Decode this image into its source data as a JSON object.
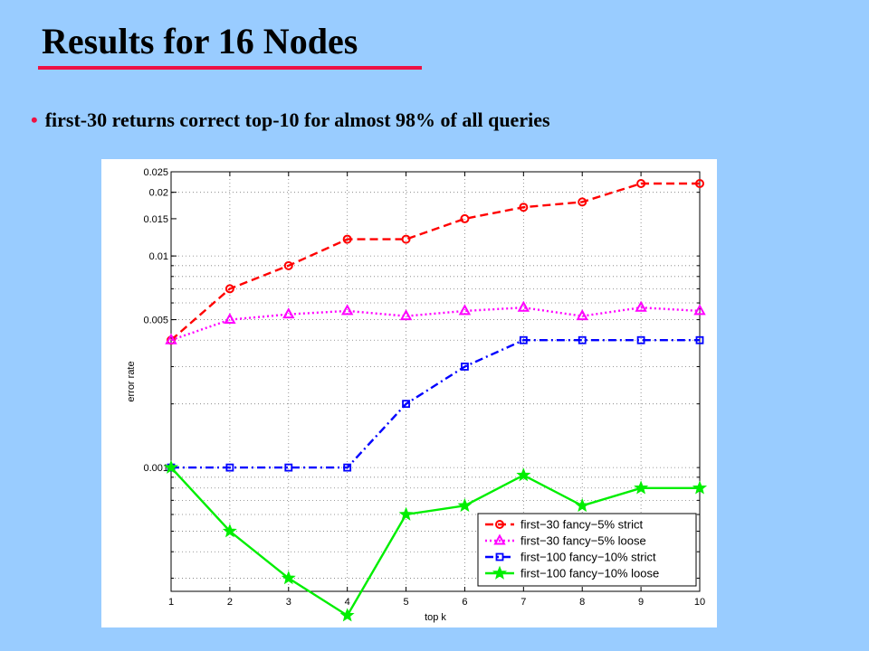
{
  "slide": {
    "title": "Results for 16 Nodes",
    "bullet": "first-30 returns correct top-10 for almost 98% of all queries"
  },
  "chart_data": {
    "type": "line",
    "title": "",
    "xlabel": "top k",
    "ylabel": "error rate",
    "y_scale": "log",
    "xlim": [
      1,
      10
    ],
    "ylim": [
      0.00026,
      0.025
    ],
    "grid": true,
    "legend_position": "bottom-right",
    "x_ticks": [
      1,
      2,
      3,
      4,
      5,
      6,
      7,
      8,
      9,
      10
    ],
    "x_tick_labels": [
      "1",
      "2",
      "3",
      "4",
      "5",
      "6",
      "7",
      "8",
      "9",
      "10"
    ],
    "y_ticks": [
      0.001,
      0.005,
      0.01,
      0.015,
      0.02,
      0.025
    ],
    "y_tick_labels": [
      "0.001",
      "0.005",
      "0.01",
      "0.015",
      "0.02",
      "0.025"
    ],
    "x": [
      1,
      2,
      3,
      4,
      5,
      6,
      7,
      8,
      9,
      10
    ],
    "series": [
      {
        "name": "first−30 fancy−5% strict",
        "color": "#FF0000",
        "dash": "9,5",
        "marker": "circle",
        "values": [
          0.004,
          0.007,
          0.009,
          0.012,
          0.012,
          0.015,
          0.017,
          0.018,
          0.022,
          0.022
        ]
      },
      {
        "name": "first−30 fancy−5% loose",
        "color": "#FF00FF",
        "dash": "2,3",
        "marker": "triangle",
        "values": [
          0.004,
          0.005,
          0.0053,
          0.0055,
          0.0052,
          0.0055,
          0.0057,
          0.0052,
          0.0057,
          0.0055
        ]
      },
      {
        "name": "first−100 fancy−10% strict",
        "color": "#0000FF",
        "dash": "9,4,2,4",
        "marker": "square",
        "values": [
          0.001,
          0.001,
          0.001,
          0.001,
          0.002,
          0.003,
          0.004,
          0.004,
          0.004,
          0.004
        ]
      },
      {
        "name": "first−100 fancy−10% loose",
        "color": "#00EE00",
        "dash": "",
        "marker": "star",
        "values": [
          0.001,
          0.0005,
          0.0003,
          0.0002,
          0.0006,
          0.00066,
          0.00092,
          0.00066,
          0.0008,
          0.0008
        ]
      }
    ]
  }
}
